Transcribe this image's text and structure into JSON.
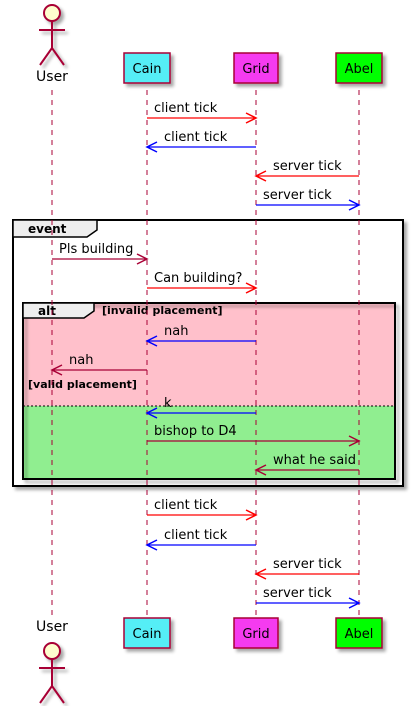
{
  "participants": [
    {
      "id": "user",
      "label": "User",
      "kind": "actor"
    },
    {
      "id": "cain",
      "label": "Cain",
      "kind": "box",
      "fill": "#55EEF6"
    },
    {
      "id": "grid",
      "label": "Grid",
      "kind": "box",
      "fill": "#F53BF0"
    },
    {
      "id": "abel",
      "label": "Abel",
      "kind": "box",
      "fill": "#00FF00"
    }
  ],
  "colors": {
    "lifeline": "#A80036",
    "red": "#FF0000",
    "blue": "#0000FF",
    "maroon": "#A80036",
    "actor_fill": "#FEFECE",
    "alt_invalid_bg": "#FFC0CB",
    "alt_valid_bg": "#90EE90"
  },
  "messages": [
    {
      "from": "cain",
      "to": "grid",
      "label": "client tick",
      "color": "red"
    },
    {
      "from": "grid",
      "to": "cain",
      "label": "client tick",
      "color": "blue"
    },
    {
      "from": "abel",
      "to": "grid",
      "label": "server tick",
      "color": "red"
    },
    {
      "from": "grid",
      "to": "abel",
      "label": "server tick",
      "color": "blue"
    },
    {
      "from": "user",
      "to": "cain",
      "label": "Pls building",
      "color": "maroon"
    },
    {
      "from": "cain",
      "to": "grid",
      "label": "Can building?",
      "color": "red"
    },
    {
      "from": "grid",
      "to": "cain",
      "label": "nah",
      "color": "blue"
    },
    {
      "from": "cain",
      "to": "user",
      "label": "nah",
      "color": "maroon"
    },
    {
      "from": "grid",
      "to": "cain",
      "label": "k",
      "color": "blue"
    },
    {
      "from": "cain",
      "to": "abel",
      "label": "bishop to D4",
      "color": "maroon"
    },
    {
      "from": "abel",
      "to": "grid",
      "label": "what he said",
      "color": "maroon"
    },
    {
      "from": "cain",
      "to": "grid",
      "label": "client tick",
      "color": "red"
    },
    {
      "from": "grid",
      "to": "cain",
      "label": "client tick",
      "color": "blue"
    },
    {
      "from": "abel",
      "to": "grid",
      "label": "server tick",
      "color": "red"
    },
    {
      "from": "grid",
      "to": "abel",
      "label": "server tick",
      "color": "blue"
    }
  ],
  "event_frame": {
    "title": "event"
  },
  "alt_frame": {
    "title": "alt",
    "invalid_guard": "[invalid placement]",
    "valid_guard": "[valid placement]"
  }
}
